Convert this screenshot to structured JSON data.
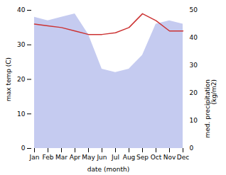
{
  "chart_data": {
    "type": "area_line",
    "categories": [
      "Jan",
      "Feb",
      "Mar",
      "Apr",
      "May",
      "Jun",
      "Jul",
      "Aug",
      "Sep",
      "Oct",
      "Nov",
      "Dec"
    ],
    "series": [
      {
        "type": "area",
        "color": "#c5cbf0",
        "values": [
          38,
          37,
          38,
          39,
          33,
          23,
          22,
          23,
          27,
          36,
          37,
          36
        ]
      },
      {
        "type": "line",
        "color": "#cc3333",
        "values": [
          36,
          35.5,
          35,
          34,
          33,
          33,
          33.5,
          35,
          39,
          37,
          34,
          34
        ]
      }
    ],
    "xlabel": "date (month)",
    "ylabel": "max temp (C)",
    "y2label": "med. precipitation\n(kg/m2)",
    "ylim": [
      0,
      40
    ],
    "yticks": [
      0,
      10,
      20,
      30,
      40
    ],
    "y2lim": [
      0,
      50
    ],
    "y2ticks": [
      0,
      10,
      20,
      30,
      40,
      50
    ],
    "grid": false
  }
}
